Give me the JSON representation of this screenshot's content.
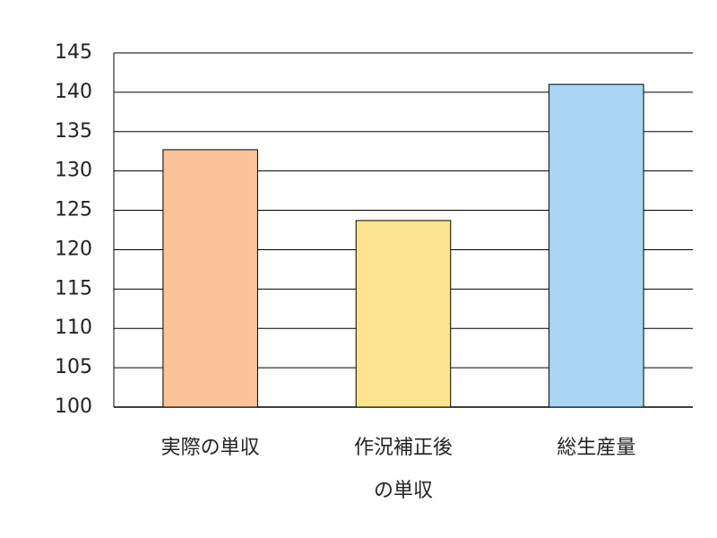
{
  "chart_data": {
    "type": "bar",
    "categories": [
      "実際の単収",
      "作況補正後\nの単収",
      "総生産量"
    ],
    "values": [
      132.7,
      123.7,
      141.0
    ],
    "colors": [
      "#fcc39b",
      "#fde48e",
      "#a6d6f2"
    ],
    "ylim": [
      100,
      145
    ],
    "yticks": [
      100,
      105,
      110,
      115,
      120,
      125,
      130,
      135,
      140,
      145
    ],
    "grid": true
  }
}
